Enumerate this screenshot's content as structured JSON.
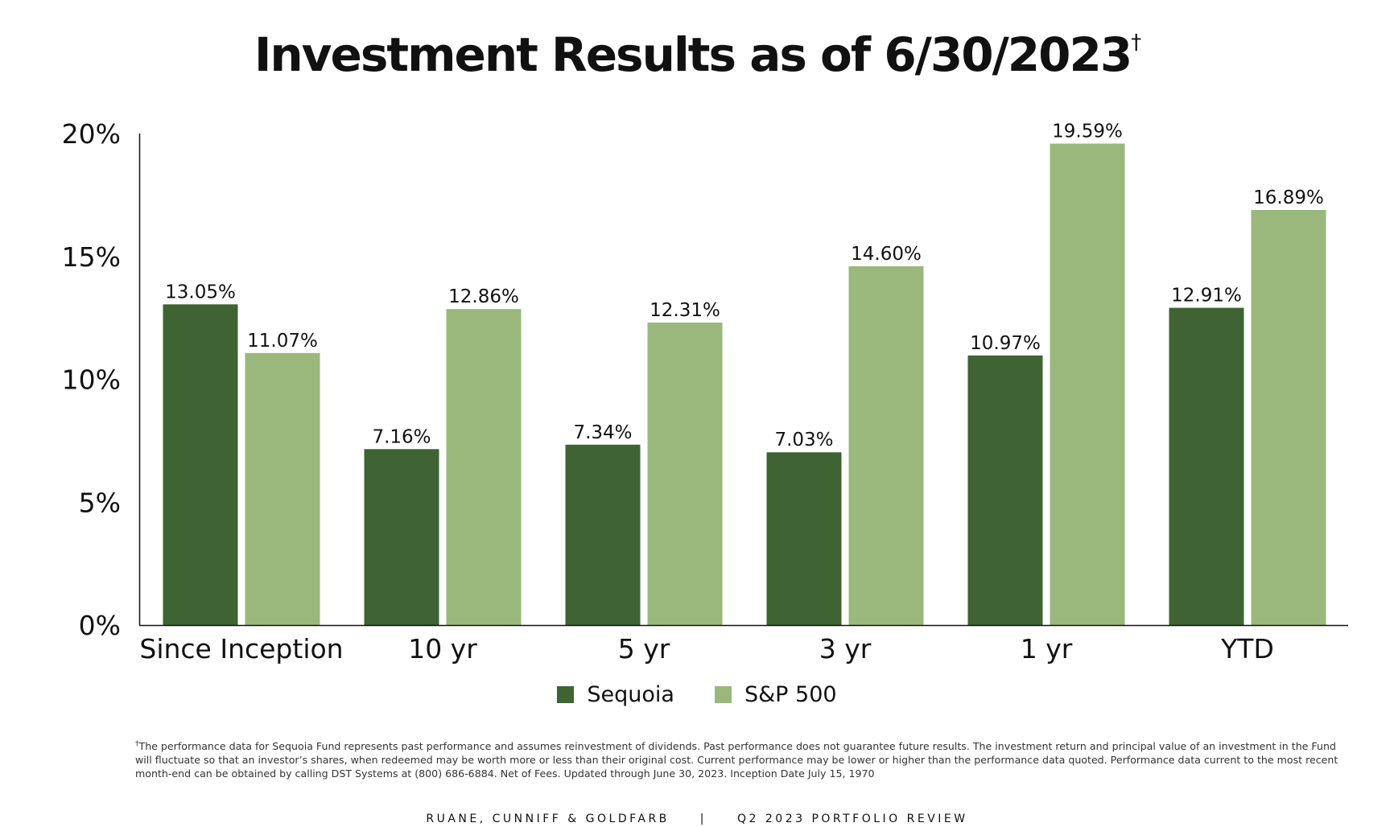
{
  "title": "Investment Results as of 6/30/2023",
  "title_mark": "†",
  "colors": {
    "sequoia": "#3f6333",
    "sp500": "#9ab87c",
    "axis": "#111111"
  },
  "chart_data": {
    "type": "bar",
    "title": "Investment Results as of 6/30/2023†",
    "categories": [
      "Since Inception",
      "10 yr",
      "5 yr",
      "3 yr",
      "1 yr",
      "YTD"
    ],
    "series": [
      {
        "name": "Sequoia",
        "values": [
          13.05,
          7.16,
          7.34,
          7.03,
          10.97,
          12.91
        ],
        "labels": [
          "13.05%",
          "7.16%",
          "7.34%",
          "7.03%",
          "10.97%",
          "12.91%"
        ]
      },
      {
        "name": "S&P 500",
        "values": [
          11.07,
          12.86,
          12.31,
          14.6,
          19.59,
          16.89
        ],
        "labels": [
          "11.07%",
          "12.86%",
          "12.31%",
          "14.60%",
          "19.59%",
          "16.89%"
        ]
      }
    ],
    "yticks": [
      0,
      5,
      10,
      15,
      20
    ],
    "ytick_labels": [
      "0%",
      "5%",
      "10%",
      "15%",
      "20%"
    ],
    "ylim": [
      0,
      20
    ],
    "xlabel": "",
    "ylabel": "",
    "grid": false,
    "legend_position": "bottom-center"
  },
  "legend": [
    {
      "label": "Sequoia"
    },
    {
      "label": "S&P 500"
    }
  ],
  "footnote_mark": "†",
  "footnote": "The performance data for Sequoia Fund represents past performance and assumes reinvestment of dividends. Past performance does not guarantee future results. The investment return and principal value of an investment in the Fund will fluctuate so that an investor’s shares, when redeemed may be worth more or less than their original cost. Current performance may be lower or higher than the performance data quoted. Performance data current to the most recent month-end can be obtained by calling DST Systems at (800) 686-6884.  Net of Fees. Updated through June 30, 2023.   Inception Date  July 15, 1970",
  "footer": {
    "left": "RUANE, CUNNIFF & GOLDFARB",
    "separator": "|",
    "right": "Q2 2023 PORTFOLIO REVIEW"
  }
}
